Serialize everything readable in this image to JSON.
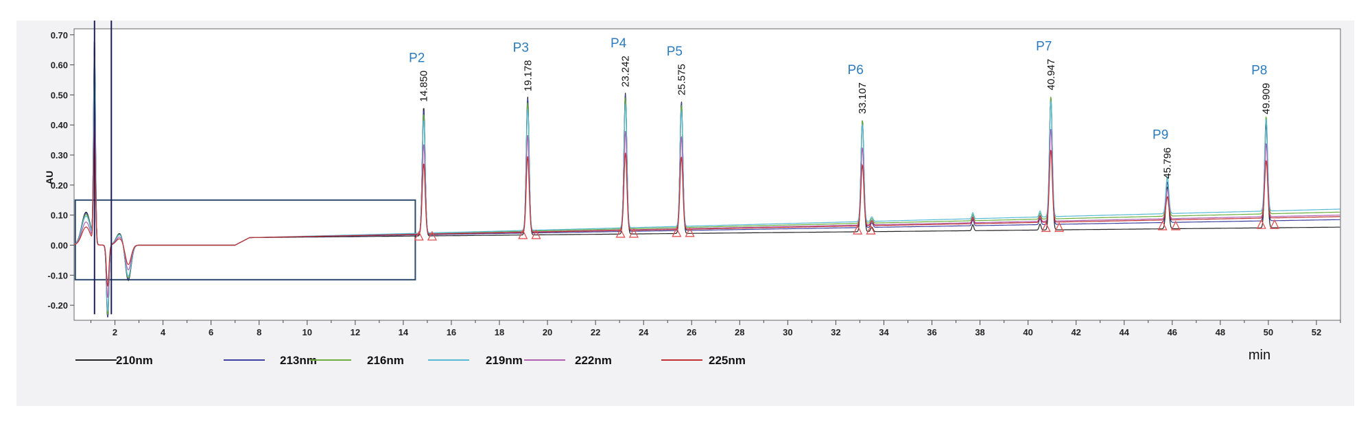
{
  "chart_data": {
    "type": "line",
    "ylabel": "AU",
    "xlabel": "min",
    "ylim": [
      -0.25,
      0.72
    ],
    "xlim": [
      0.3,
      53.0
    ],
    "yticks": [
      "0.70",
      "0.60",
      "0.50",
      "0.40",
      "0.30",
      "0.20",
      "0.10",
      "0.00",
      "-0.10",
      "-0.20"
    ],
    "ytick_values": [
      0.7,
      0.6,
      0.5,
      0.4,
      0.3,
      0.2,
      0.1,
      0.0,
      -0.1,
      -0.2
    ],
    "xticks": [
      "2",
      "4",
      "6",
      "8",
      "10",
      "12",
      "14",
      "16",
      "18",
      "20",
      "22",
      "24",
      "26",
      "28",
      "30",
      "32",
      "34",
      "36",
      "38",
      "40",
      "42",
      "44",
      "46",
      "48",
      "50",
      "52"
    ],
    "xtick_values": [
      2,
      4,
      6,
      8,
      10,
      12,
      14,
      16,
      18,
      20,
      22,
      24,
      26,
      28,
      30,
      32,
      34,
      36,
      38,
      40,
      42,
      44,
      46,
      48,
      50,
      52
    ],
    "grid": false,
    "legend_position": "bottom",
    "peaks": [
      {
        "name": "P2",
        "rt": "14.850",
        "x": 14.85,
        "height": 0.43
      },
      {
        "name": "P3",
        "rt": "19.178",
        "x": 19.178,
        "height": 0.46
      },
      {
        "name": "P4",
        "rt": "23.242",
        "x": 23.242,
        "height": 0.47
      },
      {
        "name": "P5",
        "rt": "25.575",
        "x": 25.575,
        "height": 0.44
      },
      {
        "name": "P6",
        "rt": "33.107",
        "x": 33.107,
        "height": 0.37
      },
      {
        "name": "P7",
        "rt": "40.947",
        "x": 40.947,
        "height": 0.44
      },
      {
        "name": "P9",
        "rt": "45.796",
        "x": 45.796,
        "height": 0.14
      },
      {
        "name": "P8",
        "rt": "49.909",
        "x": 49.909,
        "height": 0.35
      }
    ],
    "series": [
      {
        "name": "210nm",
        "color": "#222222",
        "scale": 1.0,
        "baseline_end": 0.06
      },
      {
        "name": "213nm",
        "color": "#3b3fa0",
        "scale": 0.97,
        "baseline_end": 0.085
      },
      {
        "name": "216nm",
        "color": "#6aae3c",
        "scale": 0.93,
        "baseline_end": 0.11
      },
      {
        "name": "219nm",
        "color": "#56b9d6",
        "scale": 0.88,
        "baseline_end": 0.12
      },
      {
        "name": "222nm",
        "color": "#b060b0",
        "scale": 0.7,
        "baseline_end": 0.1
      },
      {
        "name": "225nm",
        "color": "#c03030",
        "scale": 0.55,
        "baseline_end": 0.095
      }
    ]
  }
}
